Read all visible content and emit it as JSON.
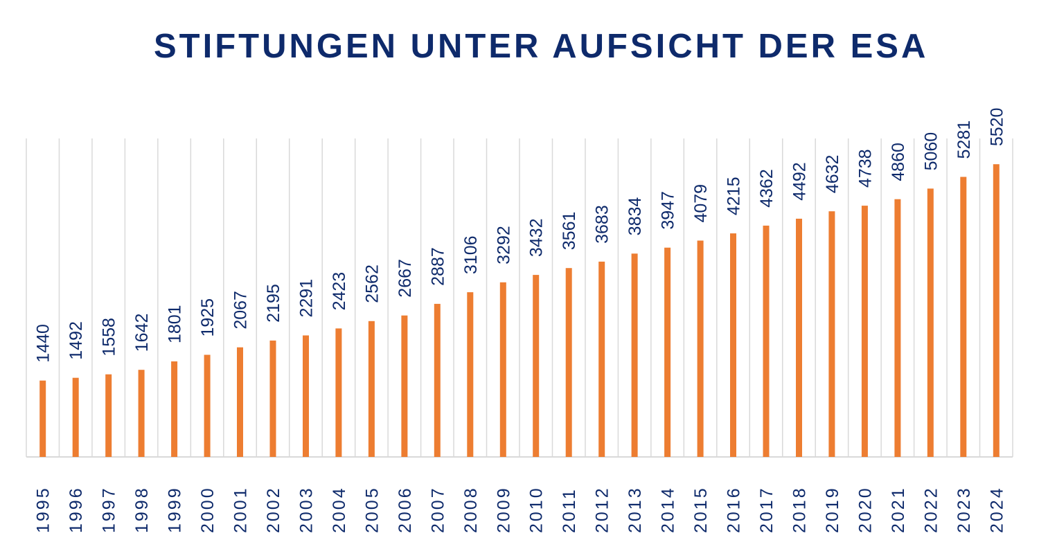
{
  "chart_data": {
    "type": "bar",
    "title": "STIFTUNGEN UNTER AUFSICHT DER ESA",
    "categories": [
      "1995",
      "1996",
      "1997",
      "1998",
      "1999",
      "2000",
      "2001",
      "2002",
      "2003",
      "2004",
      "2005",
      "2006",
      "2007",
      "2008",
      "2009",
      "2010",
      "2011",
      "2012",
      "2013",
      "2014",
      "2015",
      "2016",
      "2017",
      "2018",
      "2019",
      "2020",
      "2021",
      "2022",
      "2023",
      "2024"
    ],
    "values": [
      1440,
      1492,
      1558,
      1642,
      1801,
      1925,
      2067,
      2195,
      2291,
      2423,
      2562,
      2667,
      2887,
      3106,
      3292,
      3432,
      3561,
      3683,
      3834,
      3947,
      4079,
      4215,
      4362,
      4492,
      4632,
      4738,
      4860,
      5060,
      5281,
      5520
    ],
    "ylim": [
      0,
      6000
    ],
    "bar_color": "#ed7d31",
    "text_color": "#0e2a6b",
    "grid_color": "#d9d9d9",
    "grid": true,
    "data_labels_rotated": true,
    "tick_labels_rotated": true
  }
}
